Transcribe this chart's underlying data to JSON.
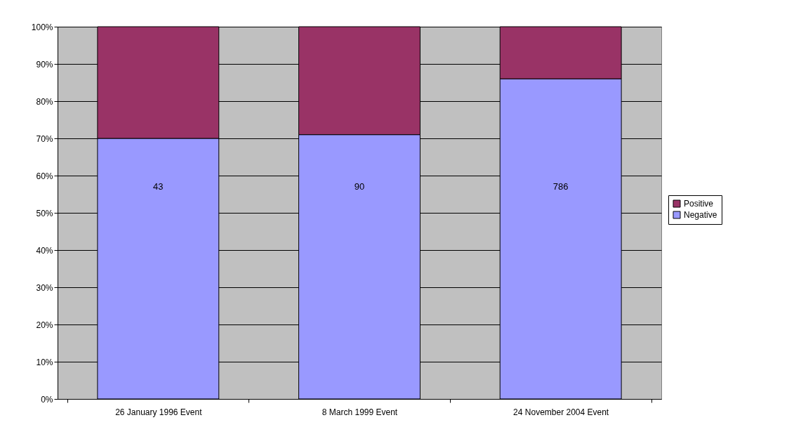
{
  "chart_data": {
    "type": "bar",
    "stacked": true,
    "categories": [
      "26 January 1996 Event",
      "8 March 1999 Event",
      "24 November 2004 Event"
    ],
    "series": [
      {
        "name": "Negative",
        "color": "#9999ff",
        "values": [
          70,
          71,
          86
        ]
      },
      {
        "name": "Positive",
        "color": "#993366",
        "values": [
          30,
          29,
          14
        ]
      }
    ],
    "ylim": [
      0,
      100
    ],
    "yticks": [
      {
        "value": 0,
        "label": "0%"
      },
      {
        "value": 10,
        "label": "10%"
      },
      {
        "value": 20,
        "label": "20%"
      },
      {
        "value": 30,
        "label": "30%"
      },
      {
        "value": 40,
        "label": "40%"
      },
      {
        "value": 50,
        "label": "50%"
      },
      {
        "value": 60,
        "label": "60%"
      },
      {
        "value": 70,
        "label": "70%"
      },
      {
        "value": 80,
        "label": "80%"
      },
      {
        "value": 90,
        "label": "90%"
      },
      {
        "value": 100,
        "label": "100%"
      }
    ],
    "annotations": [
      "43",
      "90",
      "786"
    ],
    "grid": "y",
    "legend": "right"
  }
}
